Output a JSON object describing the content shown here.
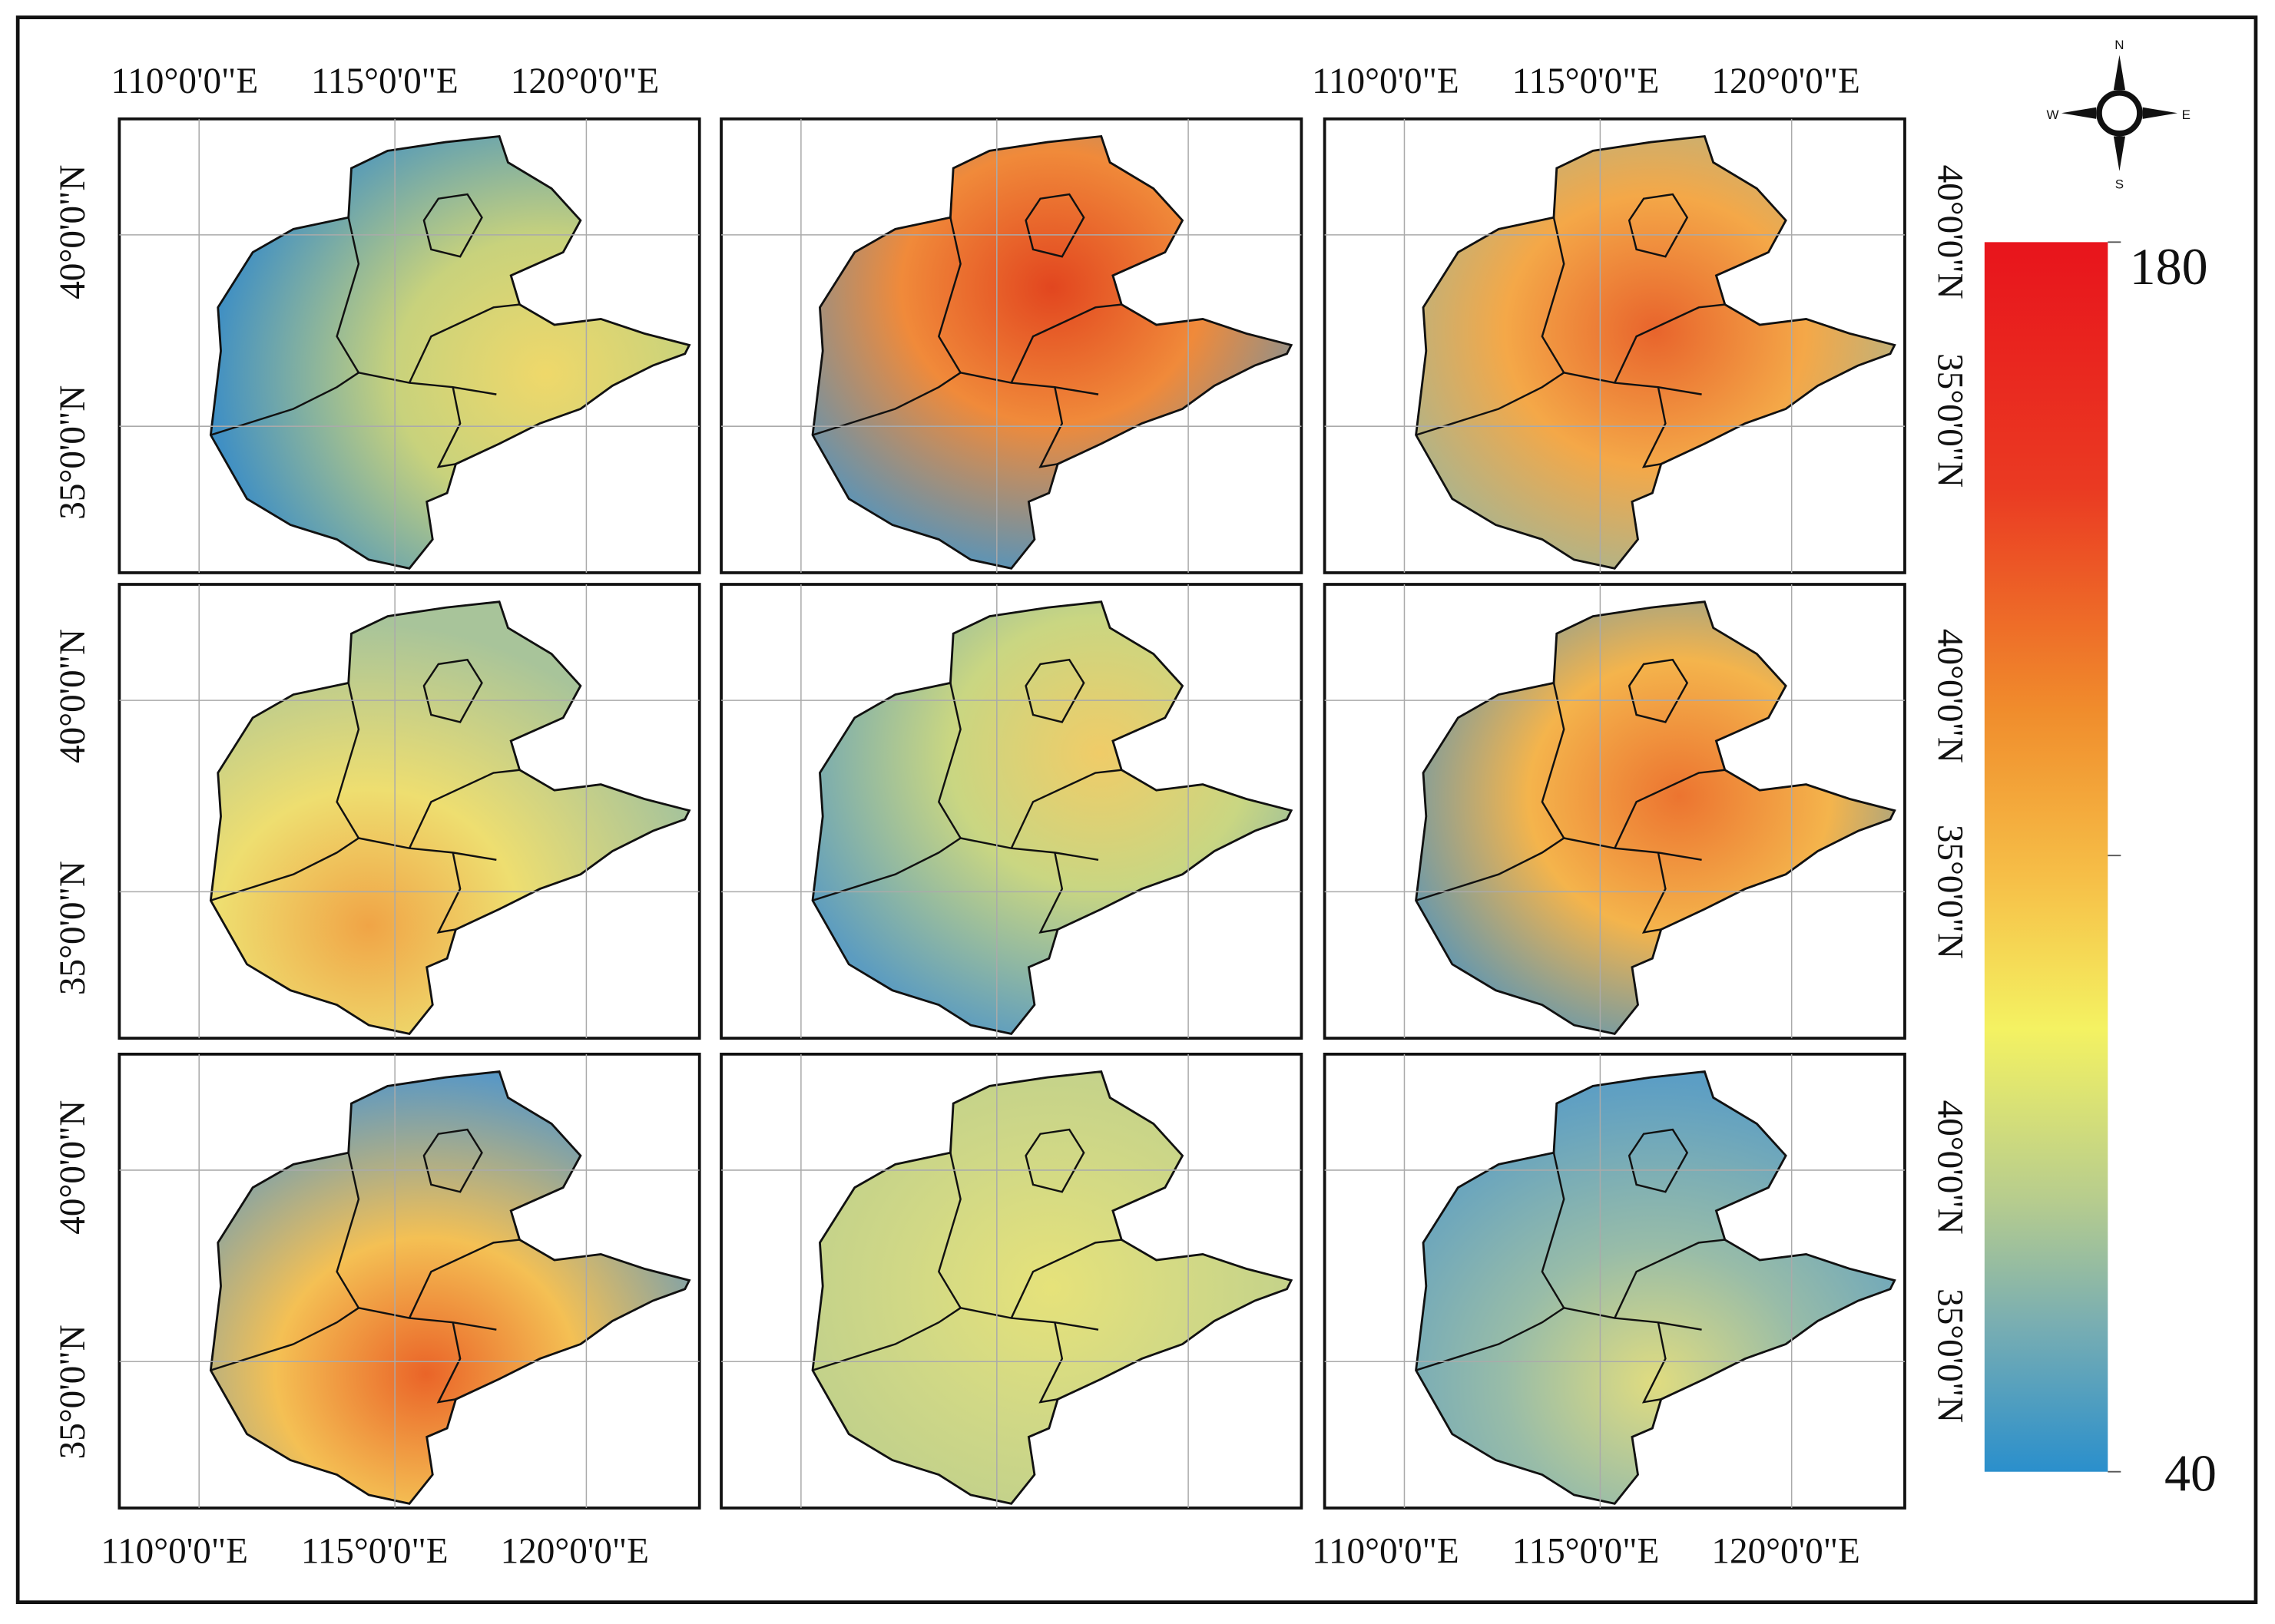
{
  "map": {
    "lon_labels": [
      "110°0'0\"E",
      "115°0'0\"E",
      "120°0'0\"E"
    ],
    "lat_labels": [
      "40°0'0\"N",
      "35°0'0\"N"
    ],
    "colorbar": {
      "max": 180,
      "min": 40
    },
    "compass": {
      "north": "N",
      "south": "S",
      "west": "W",
      "east": "E"
    }
  }
}
